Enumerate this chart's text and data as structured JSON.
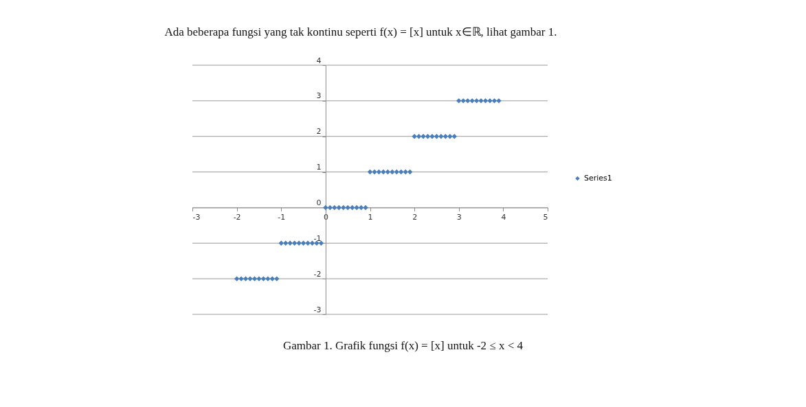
{
  "chart_data": {
    "type": "scatter",
    "title": "Ada beberapa fungsi yang tak kontinu seperti f(x) = [x] untuk x∈ℝ, lihat gambar 1.",
    "annotations": [
      "Gambar 1. Grafik fungsi f(x) = [x] untuk -2 ≤ x < 4"
    ],
    "series": [
      {
        "name": "Series1",
        "color": "#4a7ebb",
        "x": [
          -2,
          -1.9,
          -1.8,
          -1.7,
          -1.6,
          -1.5,
          -1.4,
          -1.3,
          -1.2,
          -1.1,
          -1,
          -0.9,
          -0.8,
          -0.7,
          -0.6,
          -0.5,
          -0.4,
          -0.3,
          -0.2,
          -0.1,
          0,
          0.1,
          0.2,
          0.3,
          0.4,
          0.5,
          0.6,
          0.7,
          0.8,
          0.9,
          1,
          1.1,
          1.2,
          1.3,
          1.4,
          1.5,
          1.6,
          1.7,
          1.8,
          1.9,
          2,
          2.1,
          2.2,
          2.3,
          2.4,
          2.5,
          2.6,
          2.7,
          2.8,
          2.9,
          3,
          3.1,
          3.2,
          3.3,
          3.4,
          3.5,
          3.6,
          3.7,
          3.8,
          3.9
        ],
        "values": [
          -2,
          -2,
          -2,
          -2,
          -2,
          -2,
          -2,
          -2,
          -2,
          -2,
          -1,
          -1,
          -1,
          -1,
          -1,
          -1,
          -1,
          -1,
          -1,
          -1,
          0,
          0,
          0,
          0,
          0,
          0,
          0,
          0,
          0,
          0,
          1,
          1,
          1,
          1,
          1,
          1,
          1,
          1,
          1,
          1,
          2,
          2,
          2,
          2,
          2,
          2,
          2,
          2,
          2,
          2,
          3,
          3,
          3,
          3,
          3,
          3,
          3,
          3,
          3,
          3
        ]
      }
    ],
    "xlim": [
      -3,
      5
    ],
    "xticks": [
      -3,
      -2,
      -1,
      0,
      1,
      2,
      3,
      4,
      5
    ],
    "ylim": [
      -3,
      4
    ],
    "yticks": [
      -3,
      -2,
      -1,
      0,
      1,
      2,
      3,
      4
    ],
    "grid": "y",
    "legend": "right",
    "marker": "diamond"
  }
}
